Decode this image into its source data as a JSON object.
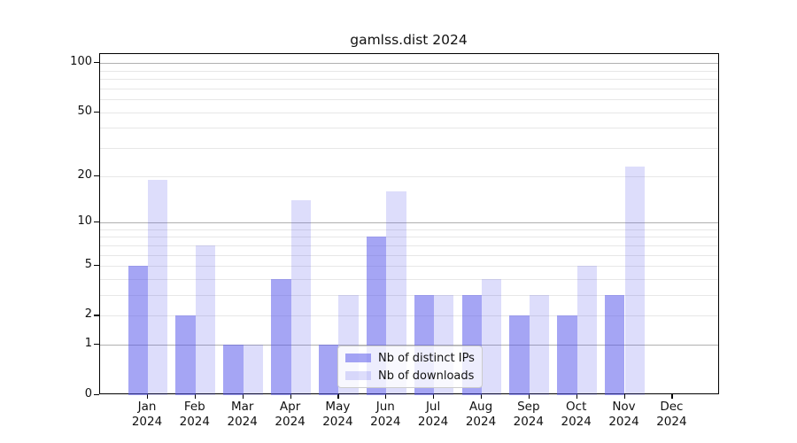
{
  "chart_data": {
    "type": "bar",
    "title": "gamlss.dist 2024",
    "categories": [
      "Jan 2024",
      "Feb 2024",
      "Mar 2024",
      "Apr 2024",
      "May 2024",
      "Jun 2024",
      "Jul 2024",
      "Aug 2024",
      "Sep 2024",
      "Oct 2024",
      "Nov 2024",
      "Dec 2024"
    ],
    "series": [
      {
        "name": "Nb of distinct IPs",
        "values": [
          5,
          2,
          1,
          4,
          1,
          8,
          3,
          3,
          2,
          2,
          3,
          0
        ],
        "color": "rgba(85,85,235,0.53)"
      },
      {
        "name": "Nb of downloads",
        "values": [
          19,
          7,
          1,
          14,
          3,
          16,
          3,
          4,
          3,
          5,
          23,
          0
        ],
        "color": "rgba(85,85,235,0.20)"
      }
    ],
    "yscale": "log1p",
    "ylim": [
      0,
      114
    ],
    "yticks": [
      0,
      1,
      2,
      5,
      10,
      20,
      50,
      100
    ],
    "grid_major": [
      1,
      10,
      100
    ],
    "grid_minor": [
      2,
      3,
      4,
      5,
      6,
      7,
      8,
      9,
      20,
      30,
      40,
      50,
      60,
      70,
      80,
      90
    ],
    "grid": "horizontal",
    "legend_position": "inside-bottom-center",
    "xlabel": "",
    "ylabel": ""
  },
  "legend": {
    "items": [
      "Nb of distinct IPs",
      "Nb of downloads"
    ]
  },
  "colors": {
    "background": "#ffffff",
    "bar_distinct_ips": "rgba(85,85,235,0.53)",
    "bar_downloads": "rgba(85,85,235,0.20)",
    "grid_major": "#b0b0b0",
    "grid_minor": "#e7e7e7",
    "axis": "#000000",
    "text": "#111111"
  }
}
